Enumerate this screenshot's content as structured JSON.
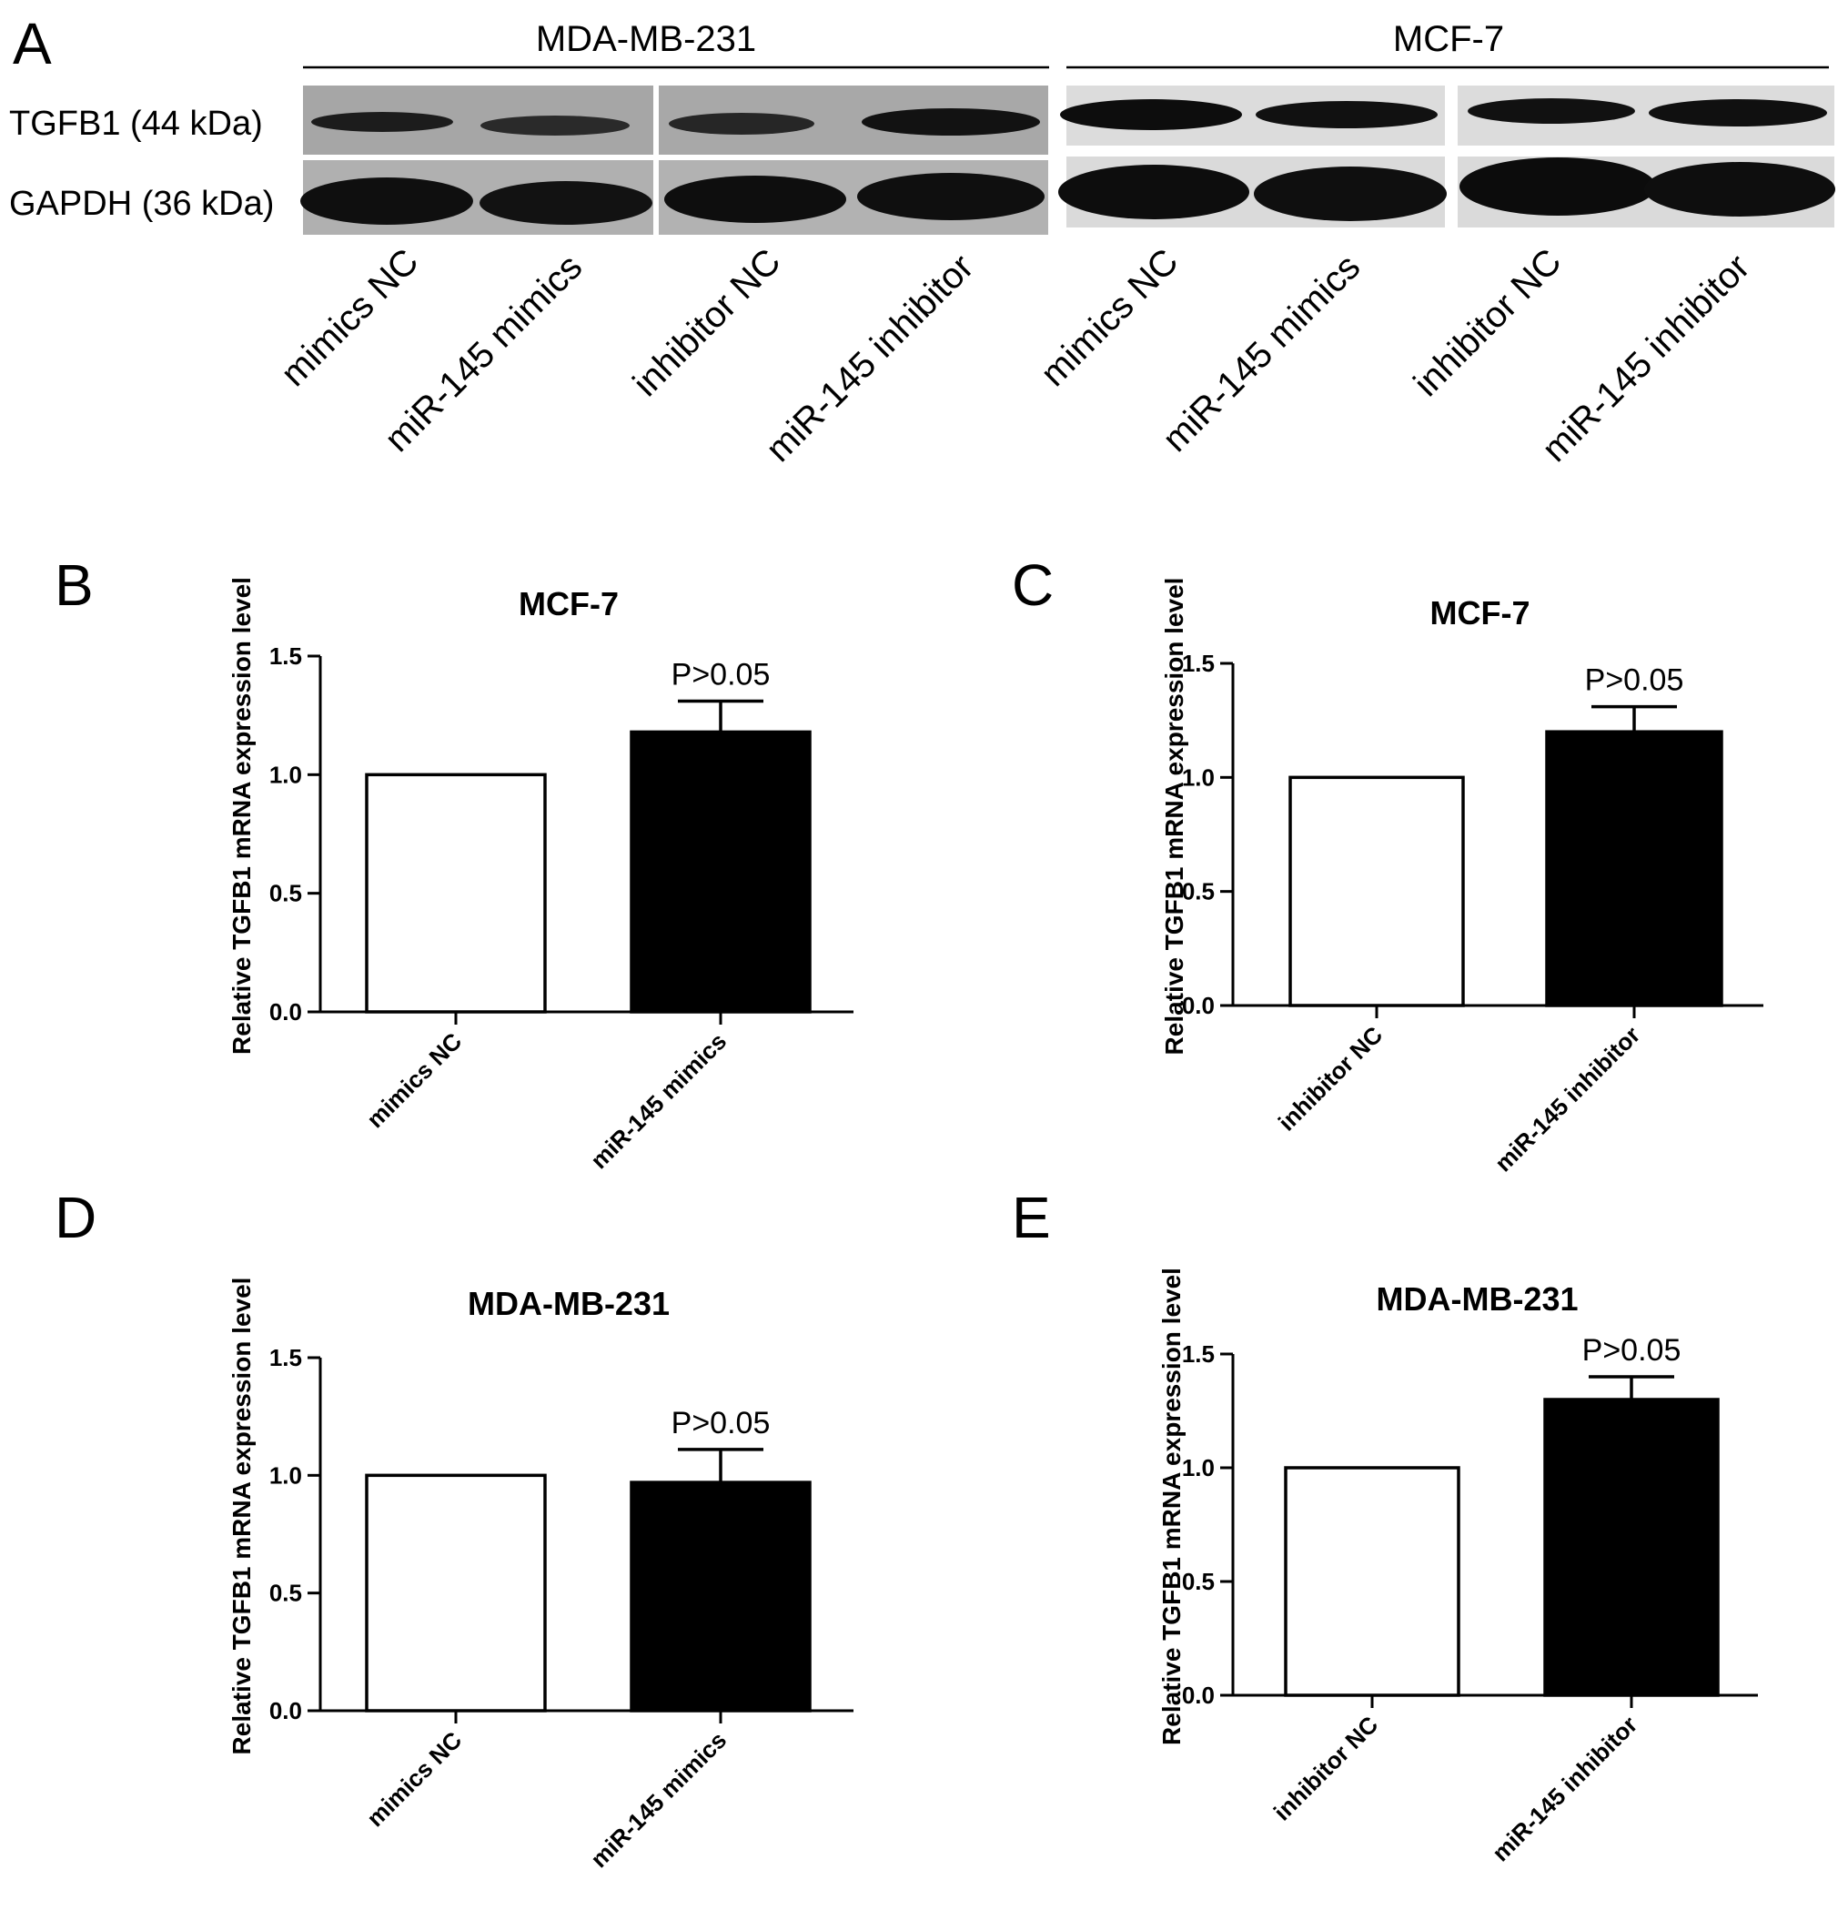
{
  "panels": {
    "A": "A",
    "B": "B",
    "C": "C",
    "D": "D",
    "E": "E"
  },
  "blot": {
    "groups": [
      {
        "name": "MDA-MB-231"
      },
      {
        "name": "MCF-7"
      }
    ],
    "proteins": [
      {
        "label": "TGFB1 (44 kDa)"
      },
      {
        "label": "GAPDH (36 kDa)"
      }
    ],
    "lanes": [
      "mimics NC",
      "miR-145 mimics",
      "inhibitor NC",
      "miR-145 inhibitor",
      "mimics NC",
      "miR-145 mimics",
      "inhibitor NC",
      "miR-145 inhibitor"
    ],
    "colors": {
      "band": "#0d0d0d",
      "background": "#a9a9a9"
    }
  },
  "chart_data": [
    {
      "panel": "B",
      "type": "bar",
      "title": "MCF-7",
      "ylabel": "Relative TGFB1 mRNA expression level",
      "xlabel": "",
      "categories": [
        "mimics NC",
        "miR-145 mimics"
      ],
      "values": [
        1.0,
        1.18
      ],
      "errors": [
        0,
        0.13
      ],
      "bar_colors": [
        "#ffffff",
        "#000000"
      ],
      "ylim": [
        0,
        1.5
      ],
      "yticks": [
        "0.0",
        "0.5",
        "1.0",
        "1.5"
      ],
      "annotation": "P>0.05",
      "grid": false
    },
    {
      "panel": "C",
      "type": "bar",
      "title": "MCF-7",
      "ylabel": "Relative TGFB1 mRNA expression level",
      "xlabel": "",
      "categories": [
        "inhibitor NC",
        "miR-145 inhibitor"
      ],
      "values": [
        1.0,
        1.2
      ],
      "errors": [
        0,
        0.11
      ],
      "bar_colors": [
        "#ffffff",
        "#000000"
      ],
      "ylim": [
        0,
        1.5
      ],
      "yticks": [
        "0.0",
        "0.5",
        "1.0",
        "1.5"
      ],
      "annotation": "P>0.05",
      "grid": false
    },
    {
      "panel": "D",
      "type": "bar",
      "title": "MDA-MB-231",
      "ylabel": "Relative TGFB1 mRNA expression level",
      "xlabel": "",
      "categories": [
        "mimics NC",
        "miR-145 mimics"
      ],
      "values": [
        1.0,
        0.97
      ],
      "errors": [
        0,
        0.14
      ],
      "bar_colors": [
        "#ffffff",
        "#000000"
      ],
      "ylim": [
        0,
        1.5
      ],
      "yticks": [
        "0.0",
        "0.5",
        "1.0",
        "1.5"
      ],
      "annotation": "P>0.05",
      "grid": false
    },
    {
      "panel": "E",
      "type": "bar",
      "title": "MDA-MB-231",
      "ylabel": "Relative TGFB1 mRNA expression level",
      "xlabel": "",
      "categories": [
        "inhibitor NC",
        "miR-145 inhibitor"
      ],
      "values": [
        1.0,
        1.3
      ],
      "errors": [
        0,
        0.1
      ],
      "bar_colors": [
        "#ffffff",
        "#000000"
      ],
      "ylim": [
        0,
        1.5
      ],
      "yticks": [
        "0.0",
        "0.5",
        "1.0",
        "1.5"
      ],
      "annotation": "P>0.05",
      "grid": false
    }
  ]
}
